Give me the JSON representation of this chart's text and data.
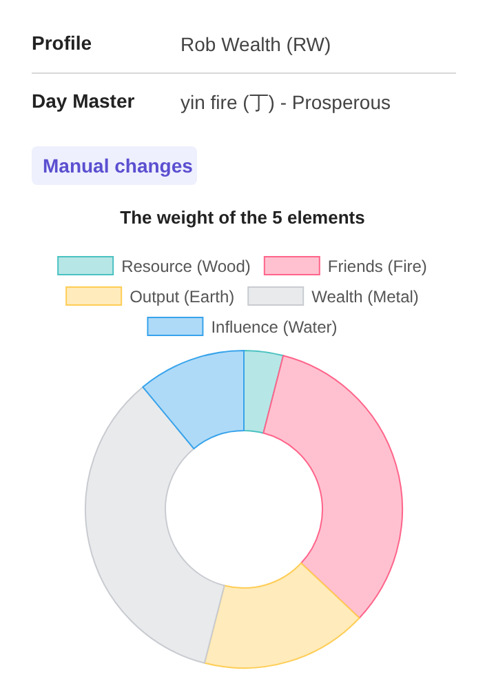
{
  "chart_data": {
    "type": "donut",
    "title": "The weight of the 5 elements",
    "annotations": [
      "Profile",
      "Rob Wealth (RW)",
      "Day Master",
      "yin fire (丁) - Prosperous",
      "Manual changes"
    ],
    "categories": [
      "Resource (Wood)",
      "Friends (Fire)",
      "Output (Earth)",
      "Wealth (Metal)",
      "Influence (Water)"
    ],
    "values": [
      4,
      33,
      17,
      35,
      11
    ],
    "colors": [
      "#b7e6e6",
      "#ffc1d0",
      "#ffebbb",
      "#e9eaec",
      "#afdaf7"
    ],
    "legend": "top"
  }
}
